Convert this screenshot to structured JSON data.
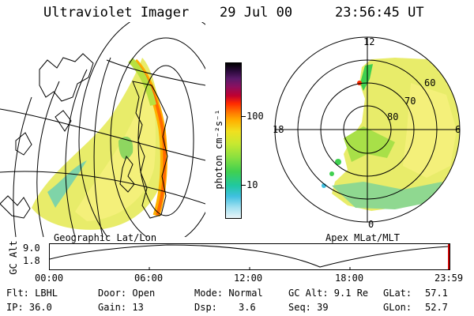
{
  "header": {
    "title": "Ultraviolet Imager",
    "date": "29 Jul 00",
    "time": "23:56:45 UT"
  },
  "left_panel": {
    "caption": "Geographic Lat/Lon"
  },
  "colorbar": {
    "unit_label": "photon cm⁻²s⁻¹",
    "ticks": [
      "100",
      "10"
    ],
    "colors": [
      "#000000",
      "#2a0a3a",
      "#5a1a6a",
      "#8a1060",
      "#c00030",
      "#ff2a00",
      "#ff7a00",
      "#ffb000",
      "#f0e020",
      "#c8e830",
      "#88e040",
      "#40d050",
      "#20c8a0",
      "#40c0e0",
      "#a0e0f0",
      "#e8f4f8"
    ]
  },
  "right_panel": {
    "caption": "Apex MLat/MLT",
    "mlt_labels": {
      "top": "12",
      "left": "18",
      "right": "6",
      "bottom": "0"
    },
    "lat_labels": [
      "60",
      "70",
      "80"
    ]
  },
  "timeline": {
    "ylabel": "GC Alt",
    "ymax": "9.0",
    "ymin": "1.8",
    "ticks": [
      "00:00",
      "06:00",
      "12:00",
      "18:00",
      "23:59"
    ]
  },
  "status": {
    "row1": {
      "flt": "Flt: LBHL",
      "door": "Door: Open",
      "mode": "Mode: Normal",
      "gcalt": "GC Alt: 9.1 Re",
      "glat_label": "GLat:",
      "glat_value": "57.1"
    },
    "row2": {
      "ip": "IP: 36.0",
      "gain": "Gain: 13",
      "dsp_label": "Dsp:",
      "dsp_value": "3.6",
      "seq": "Seq: 39",
      "glon_label": "GLon:",
      "glon_value": "52.7"
    }
  }
}
